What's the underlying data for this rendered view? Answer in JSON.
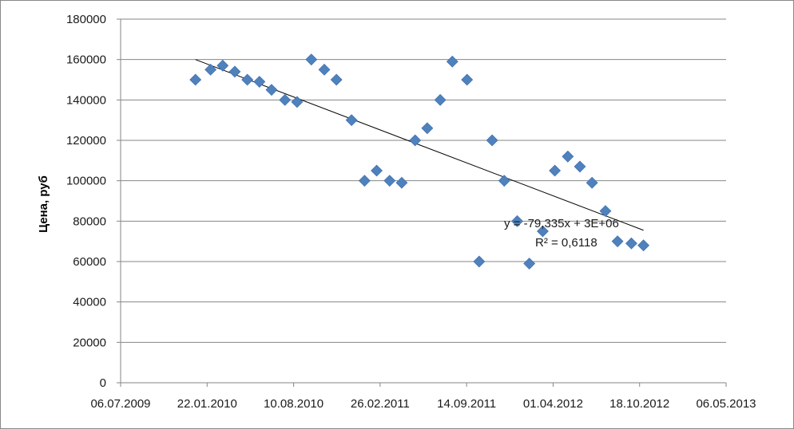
{
  "chart_data": {
    "type": "scatter",
    "title": "",
    "xlabel": "",
    "ylabel": "Цена, руб",
    "x_ticks": [
      "06.07.2009",
      "22.01.2010",
      "10.08.2010",
      "26.02.2011",
      "14.09.2011",
      "01.04.2012",
      "18.10.2012",
      "06.05.2013"
    ],
    "y_ticks": [
      "0",
      "20000",
      "40000",
      "60000",
      "80000",
      "100000",
      "120000",
      "140000",
      "160000",
      "180000"
    ],
    "xlim": [
      "2009-07-06",
      "2013-05-06"
    ],
    "ylim": [
      0,
      180000
    ],
    "grid": "horizontal",
    "legend": "none",
    "marker_color": "#4F81BD",
    "trendline_color": "#000000",
    "series": [
      {
        "marker": "diamond",
        "points": [
          {
            "x": "2009-12-26",
            "y": 150000
          },
          {
            "x": "2010-01-30",
            "y": 155000
          },
          {
            "x": "2010-02-27",
            "y": 157000
          },
          {
            "x": "2010-03-27",
            "y": 154000
          },
          {
            "x": "2010-04-25",
            "y": 150000
          },
          {
            "x": "2010-05-23",
            "y": 149000
          },
          {
            "x": "2010-06-20",
            "y": 145000
          },
          {
            "x": "2010-07-21",
            "y": 140000
          },
          {
            "x": "2010-08-18",
            "y": 139000
          },
          {
            "x": "2010-09-20",
            "y": 160000
          },
          {
            "x": "2010-10-20",
            "y": 155000
          },
          {
            "x": "2010-11-17",
            "y": 150000
          },
          {
            "x": "2010-12-22",
            "y": 130000
          },
          {
            "x": "2011-01-21",
            "y": 100000
          },
          {
            "x": "2011-02-18",
            "y": 105000
          },
          {
            "x": "2011-03-20",
            "y": 100000
          },
          {
            "x": "2011-04-17",
            "y": 99000
          },
          {
            "x": "2011-05-18",
            "y": 120000
          },
          {
            "x": "2011-06-15",
            "y": 126000
          },
          {
            "x": "2011-07-15",
            "y": 140000
          },
          {
            "x": "2011-08-12",
            "y": 159000
          },
          {
            "x": "2011-09-15",
            "y": 150000
          },
          {
            "x": "2011-10-13",
            "y": 60000
          },
          {
            "x": "2011-11-12",
            "y": 120000
          },
          {
            "x": "2011-12-10",
            "y": 100000
          },
          {
            "x": "2012-01-09",
            "y": 80000
          },
          {
            "x": "2012-02-06",
            "y": 59000
          },
          {
            "x": "2012-03-08",
            "y": 75000
          },
          {
            "x": "2012-04-05",
            "y": 105000
          },
          {
            "x": "2012-05-05",
            "y": 112000
          },
          {
            "x": "2012-06-02",
            "y": 107000
          },
          {
            "x": "2012-06-30",
            "y": 99000
          },
          {
            "x": "2012-07-31",
            "y": 85000
          },
          {
            "x": "2012-08-28",
            "y": 70000
          },
          {
            "x": "2012-09-29",
            "y": 69000
          },
          {
            "x": "2012-10-27",
            "y": 68000
          }
        ]
      }
    ],
    "trendline": {
      "type": "linear",
      "equation": "y = -79,335x + 3E+06",
      "r_squared": "R² = 0,6118",
      "start": {
        "x": "2009-12-26",
        "y": 160000
      },
      "end": {
        "x": "2012-10-27",
        "y": 75500
      }
    }
  }
}
